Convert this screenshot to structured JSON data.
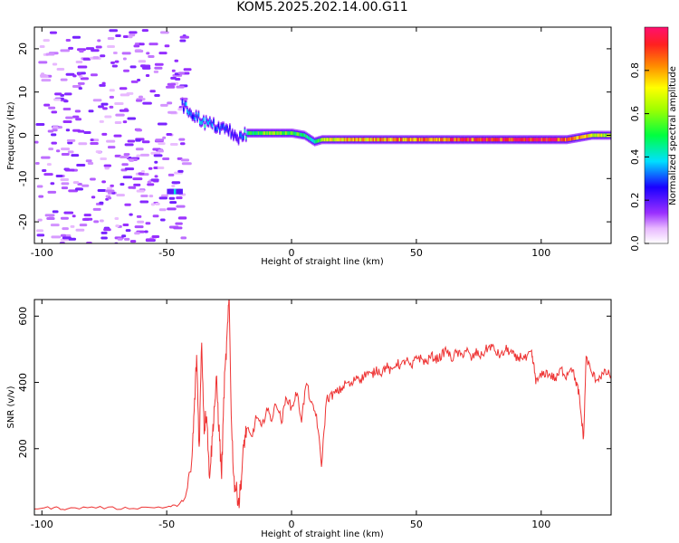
{
  "title": "KOM5.2025.202.14.00.G11",
  "colors": {
    "snr_line": "#ee3333",
    "spec_scatter": "#c9a6f0",
    "axes": "#000000"
  },
  "chart_data": [
    {
      "type": "heatmap",
      "xlabel": "Height of straight line (km)",
      "ylabel": "Frequency (Hz)",
      "xlim": [
        -103,
        128
      ],
      "ylim": [
        -25,
        25
      ],
      "xticks": [
        -100,
        -50,
        0,
        50,
        100
      ],
      "yticks": [
        -20,
        -10,
        0,
        10,
        20
      ],
      "colorbar": {
        "label": "Normalized spectral amplitude",
        "range": [
          0.0,
          1.0
        ],
        "ticks": [
          0.0,
          0.2,
          0.4,
          0.6,
          0.8
        ]
      },
      "dominant_trace": {
        "description_x_km": [
          -44,
          -42,
          -40,
          -35,
          -30,
          -25,
          -22,
          -18,
          -10,
          0,
          5,
          9,
          12,
          20,
          40,
          60,
          80,
          100,
          110,
          120,
          128
        ],
        "frequency_hz": [
          7,
          6,
          5,
          3,
          2,
          1,
          -1,
          0.5,
          0.5,
          0.5,
          0,
          -1.5,
          -1,
          -1,
          -1,
          -1,
          -1,
          -1,
          -1,
          0,
          0
        ],
        "amplitude": [
          0.3,
          0.35,
          0.3,
          0.4,
          0.3,
          0.25,
          0.2,
          0.45,
          0.6,
          0.55,
          0.5,
          0.4,
          0.6,
          0.75,
          0.8,
          0.85,
          0.9,
          0.95,
          0.9,
          0.7,
          0.6
        ]
      },
      "noise_region_x_km": [
        -103,
        -43
      ],
      "isolated_blob": {
        "x_km": -47,
        "frequency_hz": -13,
        "amplitude": 0.4
      }
    },
    {
      "type": "line",
      "xlabel": "Height of straight line (km)",
      "ylabel": "SNR (v/v)",
      "xlim": [
        -103,
        128
      ],
      "ylim": [
        0,
        650
      ],
      "xticks": [
        -100,
        -50,
        0,
        50,
        100
      ],
      "yticks": [
        200,
        400,
        600
      ],
      "series": [
        {
          "x": [
            -103,
            -95,
            -90,
            -80,
            -70,
            -60,
            -50,
            -45,
            -42,
            -40,
            -39,
            -38,
            -37,
            -36,
            -35,
            -34,
            -33,
            -32,
            -31,
            -30,
            -29,
            -28,
            -27,
            -26,
            -25,
            -24,
            -23,
            -22,
            -21,
            -20,
            -19,
            -18,
            -16,
            -14,
            -12,
            -10,
            -8,
            -6,
            -4,
            -2,
            0,
            2,
            4,
            6,
            8,
            10,
            12,
            14,
            16,
            18,
            20,
            22,
            24,
            26,
            28,
            30,
            32,
            34,
            36,
            38,
            40,
            42,
            44,
            46,
            48,
            50,
            52,
            54,
            56,
            58,
            60,
            62,
            64,
            66,
            68,
            70,
            72,
            74,
            76,
            78,
            80,
            82,
            84,
            86,
            88,
            90,
            92,
            94,
            96,
            97,
            98,
            100,
            102,
            104,
            106,
            108,
            110,
            112,
            114,
            115,
            116,
            117,
            118,
            120,
            122,
            124,
            126,
            128
          ],
          "y": [
            20,
            22,
            18,
            24,
            20,
            22,
            24,
            30,
            60,
            150,
            310,
            480,
            200,
            530,
            260,
            320,
            120,
            200,
            320,
            400,
            250,
            120,
            380,
            510,
            650,
            260,
            100,
            70,
            40,
            120,
            220,
            260,
            230,
            300,
            260,
            320,
            290,
            340,
            280,
            360,
            320,
            370,
            290,
            400,
            330,
            300,
            150,
            350,
            360,
            370,
            380,
            400,
            390,
            420,
            410,
            430,
            420,
            440,
            430,
            450,
            430,
            460,
            450,
            470,
            440,
            480,
            470,
            460,
            480,
            470,
            480,
            500,
            470,
            490,
            480,
            500,
            470,
            490,
            480,
            500,
            510,
            490,
            480,
            500,
            490,
            470,
            480,
            470,
            490,
            450,
            400,
            420,
            430,
            420,
            410,
            440,
            420,
            450,
            400,
            370,
            300,
            230,
            480,
            430,
            410,
            420,
            430,
            420
          ]
        }
      ]
    }
  ]
}
